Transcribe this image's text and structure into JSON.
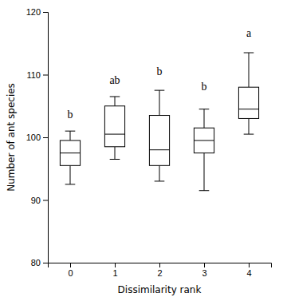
{
  "chart_data": {
    "type": "box",
    "xlabel": "Dissimilarity rank",
    "ylabel": "Number of ant species",
    "x": [
      0,
      1,
      2,
      3,
      4
    ],
    "whislo": [
      92.5,
      96.5,
      93.0,
      91.5,
      100.5
    ],
    "q1": [
      95.5,
      98.5,
      95.5,
      97.5,
      103.0
    ],
    "med": [
      97.5,
      100.5,
      98.0,
      99.5,
      104.5
    ],
    "q3": [
      99.5,
      105.0,
      103.5,
      101.5,
      108.0
    ],
    "whishi": [
      101.0,
      106.5,
      107.5,
      104.5,
      113.5
    ],
    "color": "#ffffff",
    "xlim": [
      -0.5,
      4.5
    ],
    "xticks": [
      0,
      1,
      2,
      3,
      4
    ],
    "ylim": [
      80,
      120
    ],
    "yticks": [
      80,
      90,
      100,
      110,
      120
    ],
    "annotations": [
      {
        "x": 0,
        "y": 103.0,
        "text": "b"
      },
      {
        "x": 1,
        "y": 108.5,
        "text": "ab"
      },
      {
        "x": 2,
        "y": 110.0,
        "text": "b"
      },
      {
        "x": 3,
        "y": 107.5,
        "text": "b"
      },
      {
        "x": 4,
        "y": 116.0,
        "text": "a"
      }
    ]
  }
}
